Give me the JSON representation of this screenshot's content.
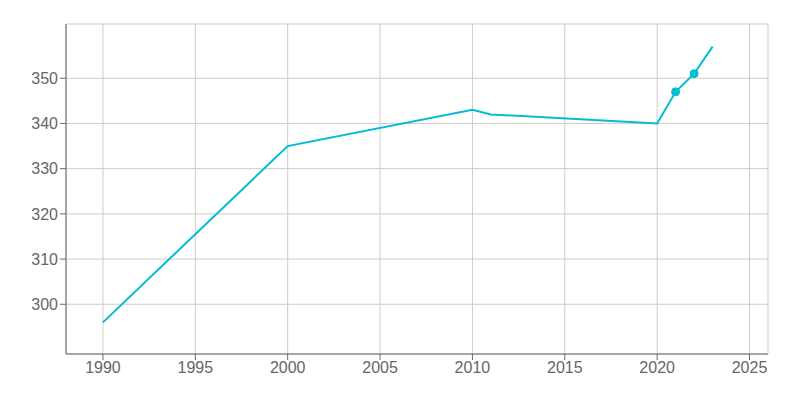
{
  "chart_data": {
    "type": "line",
    "x": [
      1990,
      2000,
      2010,
      2011,
      2020,
      2021,
      2022,
      2023
    ],
    "series": [
      {
        "color": "#00BCD4",
        "values": [
          296,
          335,
          343,
          342,
          340,
          347,
          351,
          357
        ],
        "type": "line",
        "marker": "none"
      },
      {
        "color": "#00BCD4",
        "values": [
          null,
          null,
          null,
          null,
          null,
          347,
          351,
          null
        ],
        "type": "scatter",
        "marker": "circle"
      }
    ],
    "xlim": [
      1988,
      2026
    ],
    "ylim": [
      289,
      362
    ],
    "xticks": [
      1990,
      1995,
      2000,
      2005,
      2010,
      2015,
      2020,
      2025
    ],
    "yticks": [
      300,
      310,
      320,
      330,
      340,
      350
    ],
    "grid": true
  }
}
